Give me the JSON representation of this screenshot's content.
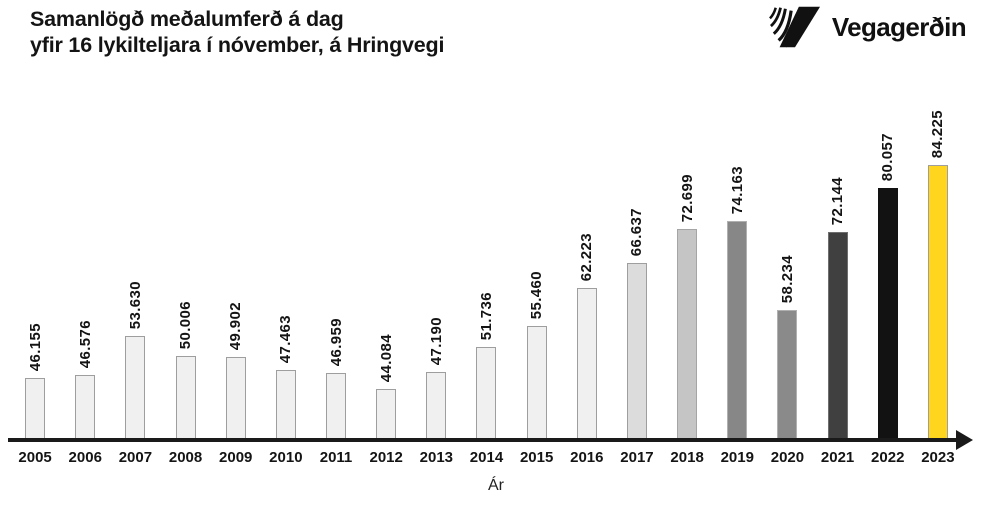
{
  "header": {
    "title_line1": "Samanlögð meðalumferð á dag",
    "title_line2": "yfir 16 lykilteljara í nóvember, á Hringvegi",
    "logo_text": "Vegagerðin"
  },
  "colors": {
    "accent_yellow": "#FFD51D",
    "axis": "#1A1A1A",
    "text": "#141414"
  },
  "chart_data": {
    "type": "bar",
    "title": "Samanlögð meðalumferð á dag yfir 16 lykilteljara í nóvember, á Hringvegi",
    "xlabel": "Ár",
    "ylabel": "",
    "grid": false,
    "legend": "none",
    "value_axis_hidden": true,
    "axis_baseline_value": 35000,
    "axis_max_value": 84225,
    "categories": [
      "2005",
      "2006",
      "2007",
      "2008",
      "2009",
      "2010",
      "2011",
      "2012",
      "2013",
      "2014",
      "2015",
      "2016",
      "2017",
      "2018",
      "2019",
      "2020",
      "2021",
      "2022",
      "2023"
    ],
    "values": [
      46155,
      46576,
      53630,
      50006,
      49902,
      47463,
      46959,
      44084,
      47190,
      51736,
      55460,
      62223,
      66637,
      72699,
      74163,
      58234,
      72144,
      80057,
      84225
    ],
    "value_labels": [
      "46.155",
      "46.576",
      "53.630",
      "50.006",
      "49.902",
      "47.463",
      "46.959",
      "44.084",
      "47.190",
      "51.736",
      "55.460",
      "62.223",
      "66.637",
      "72.699",
      "74.163",
      "58.234",
      "72.144",
      "80.057",
      "84.225"
    ],
    "bar_fills": [
      "#F0F0F0",
      "#F0F0F0",
      "#F0F0F0",
      "#F0F0F0",
      "#F0F0F0",
      "#F0F0F0",
      "#F0F0F0",
      "#F0F0F0",
      "#F0F0F0",
      "#F0F0F0",
      "#F0F0F0",
      "#F0F0F0",
      "#DCDCDC",
      "#C5C5C5",
      "#878787",
      "#8A8A8A",
      "#404040",
      "#121212",
      "#FFD51D"
    ],
    "bar_borders": [
      "#9E9E9E",
      "#9E9E9E",
      "#9E9E9E",
      "#9E9E9E",
      "#9E9E9E",
      "#9E9E9E",
      "#9E9E9E",
      "#9E9E9E",
      "#9E9E9E",
      "#9E9E9E",
      "#9E9E9E",
      "#9E9E9E",
      "#9E9E9E",
      "#A5A5A5",
      "#B0B0B0",
      "#B0B0B0",
      "#6E6E6E",
      "#121212",
      "#9E9E9E"
    ]
  }
}
